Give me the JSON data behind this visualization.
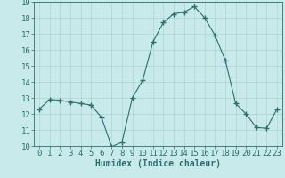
{
  "x": [
    0,
    1,
    2,
    3,
    4,
    5,
    6,
    7,
    8,
    9,
    10,
    11,
    12,
    13,
    14,
    15,
    16,
    17,
    18,
    19,
    20,
    21,
    22,
    23
  ],
  "y": [
    12.3,
    12.9,
    12.85,
    12.75,
    12.65,
    12.55,
    11.8,
    9.95,
    10.25,
    13.0,
    14.1,
    16.5,
    17.7,
    18.25,
    18.35,
    18.7,
    18.0,
    16.9,
    15.35,
    12.65,
    12.0,
    11.15,
    11.1,
    12.3
  ],
  "line_color": "#2d6e6e",
  "marker": "+",
  "marker_size": 4,
  "bg_color": "#c8eaea",
  "grid_color": "#aed4d4",
  "tick_color": "#2d6e6e",
  "label_color": "#2d6e6e",
  "xlabel": "Humidex (Indice chaleur)",
  "ylim": [
    10,
    19
  ],
  "xlim": [
    -0.5,
    23.5
  ],
  "yticks": [
    10,
    11,
    12,
    13,
    14,
    15,
    16,
    17,
    18,
    19
  ],
  "xticks": [
    0,
    1,
    2,
    3,
    4,
    5,
    6,
    7,
    8,
    9,
    10,
    11,
    12,
    13,
    14,
    15,
    16,
    17,
    18,
    19,
    20,
    21,
    22,
    23
  ],
  "xlabel_fontsize": 7,
  "tick_fontsize": 6.5
}
